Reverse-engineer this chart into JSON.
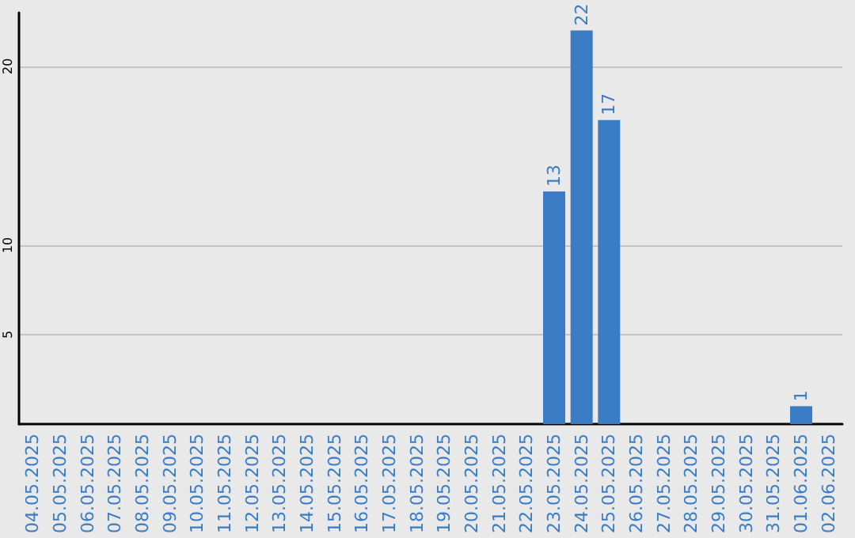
{
  "chart_data": {
    "type": "bar",
    "categories": [
      "04.05.2025",
      "05.05.2025",
      "06.05.2025",
      "07.05.2025",
      "08.05.2025",
      "09.05.2025",
      "10.05.2025",
      "11.05.2025",
      "12.05.2025",
      "13.05.2025",
      "14.05.2025",
      "15.05.2025",
      "16.05.2025",
      "17.05.2025",
      "18.05.2025",
      "19.05.2025",
      "20.05.2025",
      "21.05.2025",
      "22.05.2025",
      "23.05.2025",
      "24.05.2025",
      "25.05.2025",
      "26.05.2025",
      "27.05.2025",
      "28.05.2025",
      "29.05.2025",
      "30.05.2025",
      "31.05.2025",
      "01.06.2025",
      "02.06.2025"
    ],
    "values": [
      0,
      0,
      0,
      0,
      0,
      0,
      0,
      0,
      0,
      0,
      0,
      0,
      0,
      0,
      0,
      0,
      0,
      0,
      0,
      13,
      22,
      17,
      0,
      0,
      0,
      0,
      0,
      0,
      1,
      0
    ],
    "value_labels": [
      null,
      null,
      null,
      null,
      null,
      null,
      null,
      null,
      null,
      null,
      null,
      null,
      null,
      null,
      null,
      null,
      null,
      null,
      null,
      "13",
      "22",
      "17",
      null,
      null,
      null,
      null,
      null,
      null,
      "1",
      null
    ],
    "color": "#3b7dc4",
    "ylim": [
      0,
      23
    ],
    "yticks": [
      5,
      10,
      20
    ],
    "grid": "y"
  }
}
